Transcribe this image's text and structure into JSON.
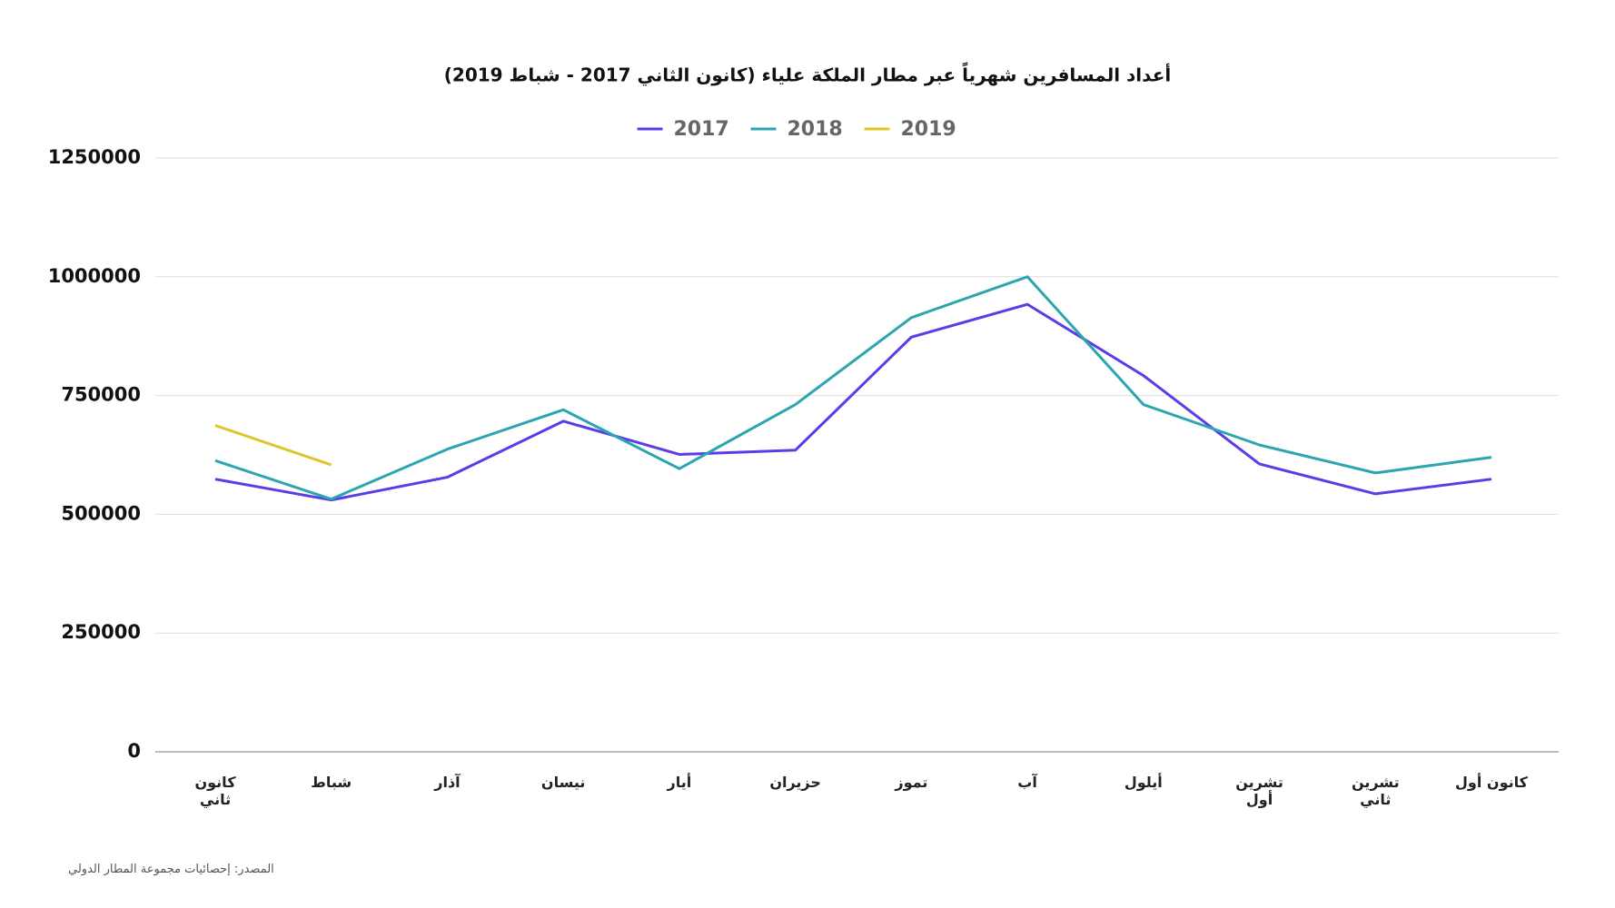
{
  "chart_data": {
    "type": "line",
    "title": "أعداد المسافرين شهرياً عبر مطار الملكة علياء (كانون الثاني 2017 - شباط 2019)",
    "source": "المصدر: إحصائيات مجموعة المطار الدولي",
    "categories": [
      "كانون ثاني",
      "شباط",
      "آذار",
      "نيسان",
      "أيار",
      "حزيران",
      "تموز",
      "آب",
      "أيلول",
      "تشرين أول",
      "تشرين ثاني",
      "كانون أول"
    ],
    "series": [
      {
        "name": "2017",
        "color": "#5b3ce8",
        "values": [
          574000,
          530000,
          578000,
          696000,
          626000,
          635000,
          873000,
          942000,
          792000,
          606000,
          543000,
          574000
        ]
      },
      {
        "name": "2018",
        "color": "#2ba5b0",
        "values": [
          613000,
          532000,
          637000,
          720000,
          596000,
          731000,
          914000,
          1000000,
          731000,
          646000,
          587000,
          620000
        ]
      },
      {
        "name": "2019",
        "color": "#e0c526",
        "values": [
          687000,
          604000,
          null,
          null,
          null,
          null,
          null,
          null,
          null,
          null,
          null,
          null
        ]
      }
    ],
    "ylim": [
      0,
      1250000
    ],
    "yticks": [
      0,
      250000,
      500000,
      750000,
      1000000,
      1250000
    ],
    "grid": true
  }
}
